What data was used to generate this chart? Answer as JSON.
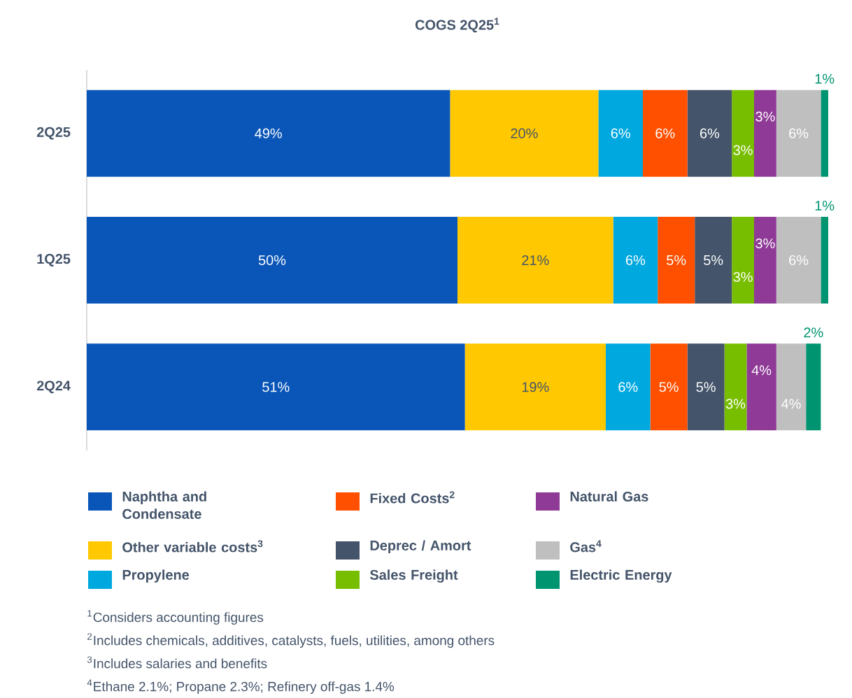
{
  "chart_data": {
    "type": "bar",
    "orientation": "horizontal",
    "stacked": true,
    "title": "COGS 2Q25$^{1}$",
    "categories": [
      "2Q25",
      "1Q25",
      "2Q24"
    ],
    "series": [
      {
        "name": "Naphtha and Condensate",
        "color": "#0a56b8",
        "values": [
          49,
          50,
          51
        ],
        "value_labels": [
          "49%",
          "50%",
          "51%"
        ]
      },
      {
        "name": "Other variable costs$^{3}$",
        "color": "#ffc800",
        "values": [
          20,
          21,
          19
        ],
        "value_labels": [
          "20%",
          "21%",
          "19%"
        ]
      },
      {
        "name": "Propylene",
        "color": "#00a8e0",
        "values": [
          6,
          6,
          6
        ],
        "value_labels": [
          "6%",
          "6%",
          "6%"
        ]
      },
      {
        "name": "Fixed Costs$^{2}$",
        "color": "#ff5000",
        "values": [
          6,
          5,
          5
        ],
        "value_labels": [
          "6%",
          "5%",
          "5%"
        ]
      },
      {
        "name": "Deprec / Amort",
        "color": "#44546a",
        "values": [
          6,
          5,
          5
        ],
        "value_labels": [
          "6%",
          "5%",
          "5%"
        ]
      },
      {
        "name": "Sales Freight",
        "color": "#78be00",
        "values": [
          3,
          3,
          3
        ],
        "value_labels": [
          "3%",
          "3%",
          "3%"
        ]
      },
      {
        "name": "Natural Gas",
        "color": "#8e3a96",
        "values": [
          3,
          3,
          4
        ],
        "value_labels": [
          "3%",
          "3%",
          "4%"
        ]
      },
      {
        "name": "Gas$^{4}$",
        "color": "#bfbfbf",
        "values": [
          6,
          6,
          4
        ],
        "value_labels": [
          "6%",
          "6%",
          "4%"
        ]
      },
      {
        "name": "Electric Energy",
        "color": "#009470",
        "values": [
          1,
          1,
          2
        ],
        "value_labels": [
          "1%",
          "1%",
          "2%"
        ]
      }
    ],
    "legend": "bottom",
    "annotations": [
      "$^{1}$Considers accounting figures",
      "$^{2}$Includes chemicals, additives, catalysts, fuels, utilities, among others",
      "$^{3}$Includes salaries and benefits",
      "$^{4}$Ethane 2.1%; Propane 2.3%; Refinery off-gas 1.4%"
    ]
  }
}
